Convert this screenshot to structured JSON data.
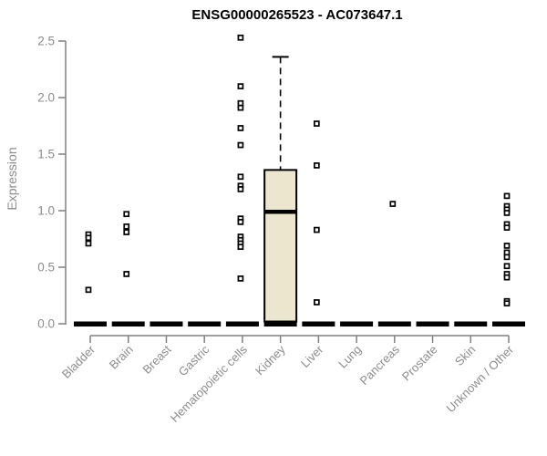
{
  "chart_data": {
    "type": "boxplot",
    "title": "ENSG00000265523 - AC073647.1",
    "ylabel": "Expression",
    "xlabel": "",
    "ylim": [
      0,
      2.5
    ],
    "yticks": [
      0,
      0.5,
      1,
      1.5,
      2,
      2.5
    ],
    "grid": false,
    "legend": false,
    "point_marker": "open-square",
    "categories": [
      {
        "label": "Bladder",
        "points": [
          0.79,
          0.76,
          0.71,
          0.3
        ],
        "zero_line": true
      },
      {
        "label": "Brain",
        "points": [
          0.97,
          0.86,
          0.81,
          0.44
        ],
        "zero_line": true
      },
      {
        "label": "Breast",
        "points": [],
        "zero_line": true
      },
      {
        "label": "Gastric",
        "points": [],
        "zero_line": true
      },
      {
        "label": "Hematopoietic cells",
        "points": [
          2.53,
          2.1,
          1.95,
          1.91,
          1.73,
          1.58,
          1.3,
          1.22,
          1.19,
          0.93,
          0.9,
          0.77,
          0.74,
          0.71,
          0.68,
          0.4
        ],
        "zero_line": true
      },
      {
        "label": "Kidney",
        "points": [],
        "zero_line": true,
        "box": {
          "q1": 0.02,
          "median": 0.99,
          "q3": 1.36,
          "whisker_high": 2.36
        }
      },
      {
        "label": "Liver",
        "points": [
          1.77,
          1.4,
          0.83,
          0.19
        ],
        "zero_line": true
      },
      {
        "label": "Lung",
        "points": [],
        "zero_line": true
      },
      {
        "label": "Pancreas",
        "points": [
          1.06
        ],
        "zero_line": true
      },
      {
        "label": "Prostate",
        "points": [],
        "zero_line": true
      },
      {
        "label": "Skin",
        "points": [],
        "zero_line": true
      },
      {
        "label": "Unknown / Other",
        "points": [
          1.13,
          1.04,
          1.01,
          0.98,
          0.88,
          0.85,
          0.69,
          0.63,
          0.59,
          0.51,
          0.44,
          0.41,
          0.2,
          0.18
        ],
        "zero_line": true
      }
    ],
    "colors": {
      "background": "#FFFFFF",
      "title_text": "#000000",
      "axis_line": "#808080",
      "tick_text": "#8C8C8C",
      "point": "#000000",
      "zero_line": "#000000",
      "box_fill": "#EDE6CE",
      "box_border": "#000000",
      "median_line": "#000000"
    }
  }
}
